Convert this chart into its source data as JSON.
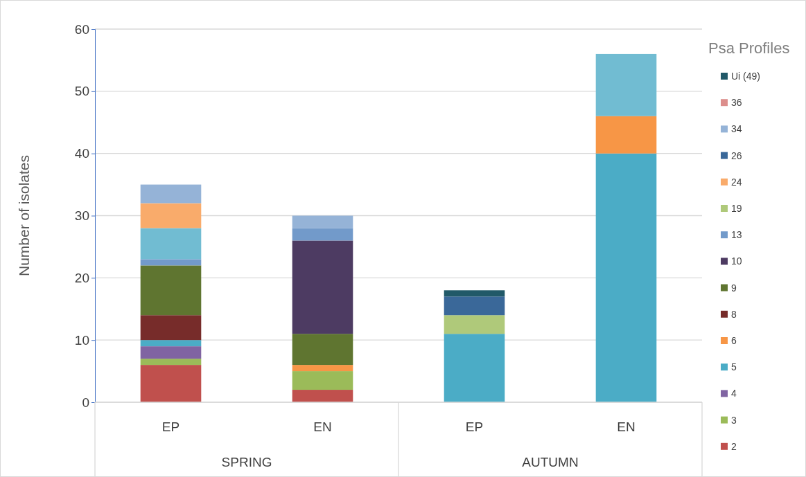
{
  "chart_data": {
    "type": "bar",
    "stacked": true,
    "ylabel": "Number of isolates",
    "legend_title": "Psa Profiles",
    "categories": [
      "EP",
      "EN",
      "EP",
      "EN"
    ],
    "annotations": [
      "SPRING",
      "AUTUMN"
    ],
    "ylim": [
      0,
      60
    ],
    "yticks": [
      0,
      10,
      20,
      30,
      40,
      50,
      60
    ],
    "grid": "y",
    "legend": "right",
    "series": [
      {
        "name": "2",
        "color": "#c0504d",
        "values": [
          6,
          2,
          null,
          null
        ]
      },
      {
        "name": "3",
        "color": "#9bbb59",
        "values": [
          1,
          3,
          null,
          null
        ]
      },
      {
        "name": "4",
        "color": "#8064a2",
        "values": [
          2,
          null,
          null,
          null
        ]
      },
      {
        "name": "5",
        "color": "#4bacc6",
        "values": [
          1,
          null,
          11,
          40
        ]
      },
      {
        "name": "6",
        "color": "#f79646",
        "values": [
          null,
          1,
          null,
          6
        ]
      },
      {
        "name": "8",
        "color": "#772c2a",
        "values": [
          4,
          null,
          null,
          null
        ]
      },
      {
        "name": "9",
        "color": "#5f7530",
        "values": [
          8,
          5,
          null,
          null
        ]
      },
      {
        "name": "10",
        "color": "#4d3b62",
        "values": [
          null,
          15,
          null,
          null
        ]
      },
      {
        "name": "13",
        "color": "#729aca",
        "values": [
          1,
          2,
          null,
          null
        ]
      },
      {
        "color": "#71bcd2",
        "values": [
          5,
          null,
          null,
          10
        ]
      },
      {
        "name": "19",
        "color": "#afc97a",
        "values": [
          null,
          null,
          3,
          null
        ]
      },
      {
        "name": "24",
        "color": "#f9ab6b",
        "values": [
          4,
          null,
          null,
          null
        ]
      },
      {
        "name": "26",
        "color": "#3a6899",
        "values": [
          null,
          null,
          3,
          null
        ]
      },
      {
        "name": "34",
        "color": "#95b3d7",
        "values": [
          3,
          2,
          null,
          null
        ]
      },
      {
        "name": "36",
        "color": "#dc8e8c",
        "values": [
          null,
          null,
          null,
          null
        ]
      },
      {
        "name": "Ui (49)",
        "color": "#215968",
        "values": [
          null,
          null,
          1,
          null
        ]
      }
    ]
  }
}
